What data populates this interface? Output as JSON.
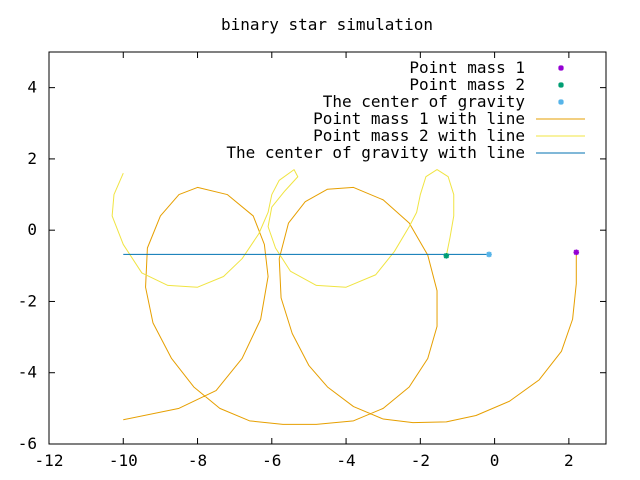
{
  "chart_data": {
    "type": "line",
    "title": "binary star simulation",
    "xlabel": "",
    "ylabel": "",
    "xlim": [
      -12,
      3
    ],
    "ylim": [
      -6,
      5
    ],
    "x_ticks": [
      -12,
      -10,
      -8,
      -6,
      -4,
      -2,
      0,
      2
    ],
    "y_ticks": [
      -6,
      -4,
      -2,
      0,
      2,
      4
    ],
    "grid": false,
    "legend_position": "top-right",
    "series": [
      {
        "name": "Point mass 1",
        "style": "points",
        "marker": "star",
        "color": "#9400d3",
        "points": [
          [
            2.2,
            -0.62
          ]
        ]
      },
      {
        "name": "Point mass 2",
        "style": "points",
        "marker": "star",
        "color": "#009e73",
        "points": [
          [
            -1.3,
            -0.72
          ]
        ]
      },
      {
        "name": "The center of gravity",
        "style": "points",
        "marker": "star",
        "color": "#56b4e9",
        "points": [
          [
            -0.15,
            -0.68
          ]
        ]
      },
      {
        "name": "Point mass 1 with line",
        "style": "line",
        "color": "#e69f00",
        "points": [
          [
            2.2,
            -0.62
          ],
          [
            2.2,
            -1.5
          ],
          [
            2.1,
            -2.5
          ],
          [
            1.8,
            -3.4
          ],
          [
            1.2,
            -4.2
          ],
          [
            0.4,
            -4.8
          ],
          [
            -0.5,
            -5.2
          ],
          [
            -1.3,
            -5.38
          ],
          [
            -2.2,
            -5.4
          ],
          [
            -3.0,
            -5.3
          ],
          [
            -3.8,
            -4.95
          ],
          [
            -4.5,
            -4.4
          ],
          [
            -5.0,
            -3.8
          ],
          [
            -5.45,
            -2.9
          ],
          [
            -5.75,
            -1.9
          ],
          [
            -5.8,
            -0.8
          ],
          [
            -5.55,
            0.2
          ],
          [
            -5.1,
            0.8
          ],
          [
            -4.5,
            1.15
          ],
          [
            -3.8,
            1.2
          ],
          [
            -3.0,
            0.85
          ],
          [
            -2.3,
            0.2
          ],
          [
            -1.8,
            -0.7
          ],
          [
            -1.55,
            -1.7
          ],
          [
            -1.55,
            -2.7
          ],
          [
            -1.8,
            -3.6
          ],
          [
            -2.3,
            -4.4
          ],
          [
            -3.0,
            -5.0
          ],
          [
            -3.8,
            -5.35
          ],
          [
            -4.8,
            -5.45
          ],
          [
            -5.7,
            -5.45
          ],
          [
            -6.6,
            -5.35
          ],
          [
            -7.4,
            -5.0
          ],
          [
            -8.1,
            -4.4
          ],
          [
            -8.7,
            -3.6
          ],
          [
            -9.2,
            -2.6
          ],
          [
            -9.4,
            -1.6
          ],
          [
            -9.35,
            -0.5
          ],
          [
            -9.0,
            0.4
          ],
          [
            -8.5,
            1.0
          ],
          [
            -8.0,
            1.2
          ],
          [
            -7.2,
            1.0
          ],
          [
            -6.5,
            0.4
          ],
          [
            -6.2,
            -0.4
          ],
          [
            -6.1,
            -1.3
          ],
          [
            -6.3,
            -2.5
          ],
          [
            -6.8,
            -3.6
          ],
          [
            -7.5,
            -4.5
          ],
          [
            -8.5,
            -5.0
          ],
          [
            -10.0,
            -5.32
          ]
        ]
      },
      {
        "name": "Point mass 2 with line",
        "style": "line",
        "color": "#f0e442",
        "points": [
          [
            -1.3,
            -0.72
          ],
          [
            -1.2,
            -0.2
          ],
          [
            -1.1,
            0.4
          ],
          [
            -1.1,
            1.0
          ],
          [
            -1.25,
            1.5
          ],
          [
            -1.55,
            1.7
          ],
          [
            -1.85,
            1.5
          ],
          [
            -2.0,
            1.0
          ],
          [
            -2.1,
            0.5
          ],
          [
            -2.3,
            0.1
          ],
          [
            -2.7,
            -0.6
          ],
          [
            -3.2,
            -1.25
          ],
          [
            -4.0,
            -1.6
          ],
          [
            -4.8,
            -1.55
          ],
          [
            -5.5,
            -1.15
          ],
          [
            -5.9,
            -0.5
          ],
          [
            -6.1,
            0.1
          ],
          [
            -6.0,
            0.65
          ],
          [
            -5.65,
            1.1
          ],
          [
            -5.3,
            1.5
          ],
          [
            -5.4,
            1.7
          ],
          [
            -5.8,
            1.4
          ],
          [
            -6.0,
            1.0
          ],
          [
            -6.1,
            0.5
          ],
          [
            -6.35,
            -0.1
          ],
          [
            -6.8,
            -0.8
          ],
          [
            -7.3,
            -1.3
          ],
          [
            -8.0,
            -1.6
          ],
          [
            -8.8,
            -1.55
          ],
          [
            -9.5,
            -1.2
          ],
          [
            -10.0,
            -0.4
          ],
          [
            -10.3,
            0.4
          ],
          [
            -10.25,
            1.0
          ],
          [
            -10.0,
            1.6
          ]
        ]
      },
      {
        "name": "The center of gravity with line",
        "style": "line",
        "color": "#0072b2",
        "points": [
          [
            -10.0,
            -0.68
          ],
          [
            -0.15,
            -0.68
          ]
        ]
      }
    ]
  }
}
